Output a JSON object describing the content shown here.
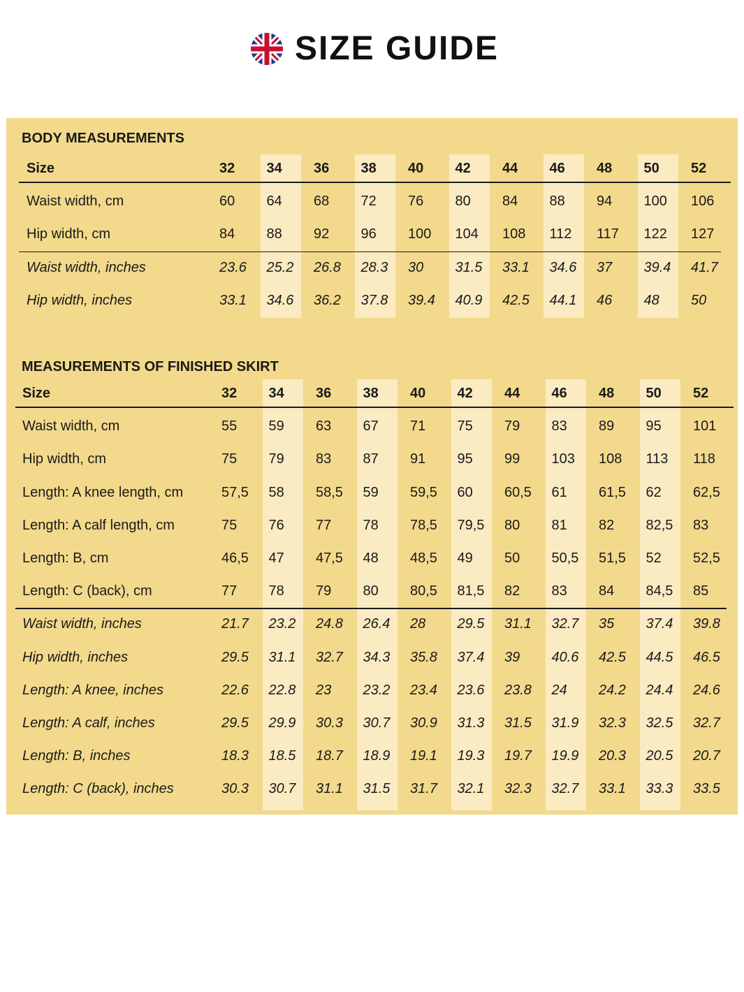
{
  "header": {
    "title": "SIZE GUIDE"
  },
  "tables": [
    {
      "title": "BODY MEASUREMENTS",
      "columns": [
        "Size",
        "32",
        "34",
        "36",
        "38",
        "40",
        "42",
        "44",
        "46",
        "48",
        "50",
        "52"
      ],
      "rows_cm": [
        [
          "Waist width, cm",
          "60",
          "64",
          "68",
          "72",
          "76",
          "80",
          "84",
          "88",
          "94",
          "100",
          "106"
        ],
        [
          "Hip width, cm",
          "84",
          "88",
          "92",
          "96",
          "100",
          "104",
          "108",
          "112",
          "117",
          "122",
          "127"
        ]
      ],
      "rows_inches": [
        [
          "Waist width, inches",
          "23.6",
          "25.2",
          "26.8",
          "28.3",
          "30",
          "31.5",
          "33.1",
          "34.6",
          "37",
          "39.4",
          "41.7"
        ],
        [
          "Hip width, inches",
          "33.1",
          "34.6",
          "36.2",
          "37.8",
          "39.4",
          "40.9",
          "42.5",
          "44.1",
          "46",
          "48",
          "50"
        ]
      ]
    },
    {
      "title": "MEASUREMENTS OF FINISHED SKIRT",
      "columns": [
        "Size",
        "32",
        "34",
        "36",
        "38",
        "40",
        "42",
        "44",
        "46",
        "48",
        "50",
        "52"
      ],
      "rows_cm": [
        [
          "Waist width, cm",
          "55",
          "59",
          "63",
          "67",
          "71",
          "75",
          "79",
          "83",
          "89",
          "95",
          "101"
        ],
        [
          "Hip width, cm",
          "75",
          "79",
          "83",
          "87",
          "91",
          "95",
          "99",
          "103",
          "108",
          "113",
          "118"
        ],
        [
          "Length: A knee length, cm",
          "57,5",
          "58",
          "58,5",
          "59",
          "59,5",
          "60",
          "60,5",
          "61",
          "61,5",
          "62",
          "62,5"
        ],
        [
          "Length: A calf length, cm",
          "75",
          "76",
          "77",
          "78",
          "78,5",
          "79,5",
          "80",
          "81",
          "82",
          "82,5",
          "83"
        ],
        [
          "Length: B, cm",
          "46,5",
          "47",
          "47,5",
          "48",
          "48,5",
          "49",
          "50",
          "50,5",
          "51,5",
          "52",
          "52,5"
        ],
        [
          "Length: C (back), cm",
          "77",
          "78",
          "79",
          "80",
          "80,5",
          "81,5",
          "82",
          "83",
          "84",
          "84,5",
          "85"
        ]
      ],
      "rows_inches": [
        [
          "Waist width, inches",
          "21.7",
          "23.2",
          "24.8",
          "26.4",
          "28",
          "29.5",
          "31.1",
          "32.7",
          "35",
          "37.4",
          "39.8"
        ],
        [
          "Hip width, inches",
          "29.5",
          "31.1",
          "32.7",
          "34.3",
          "35.8",
          "37.4",
          "39",
          "40.6",
          "42.5",
          "44.5",
          "46.5"
        ],
        [
          "Length: A knee, inches",
          "22.6",
          "22.8",
          "23",
          "23.2",
          "23.4",
          "23.6",
          "23.8",
          "24",
          "24.2",
          "24.4",
          "24.6"
        ],
        [
          "Length: A calf, inches",
          "29.5",
          "29.9",
          "30.3",
          "30.7",
          "30.9",
          "31.3",
          "31.5",
          "31.9",
          "32.3",
          "32.5",
          "32.7"
        ],
        [
          "Length: B, inches",
          "18.3",
          "18.5",
          "18.7",
          "18.9",
          "19.1",
          "19.3",
          "19.7",
          "19.9",
          "20.3",
          "20.5",
          "20.7"
        ],
        [
          "Length: C (back), inches",
          "30.3",
          "30.7",
          "31.1",
          "31.5",
          "31.7",
          "32.1",
          "32.3",
          "32.7",
          "33.1",
          "33.3",
          "33.5"
        ]
      ]
    }
  ]
}
